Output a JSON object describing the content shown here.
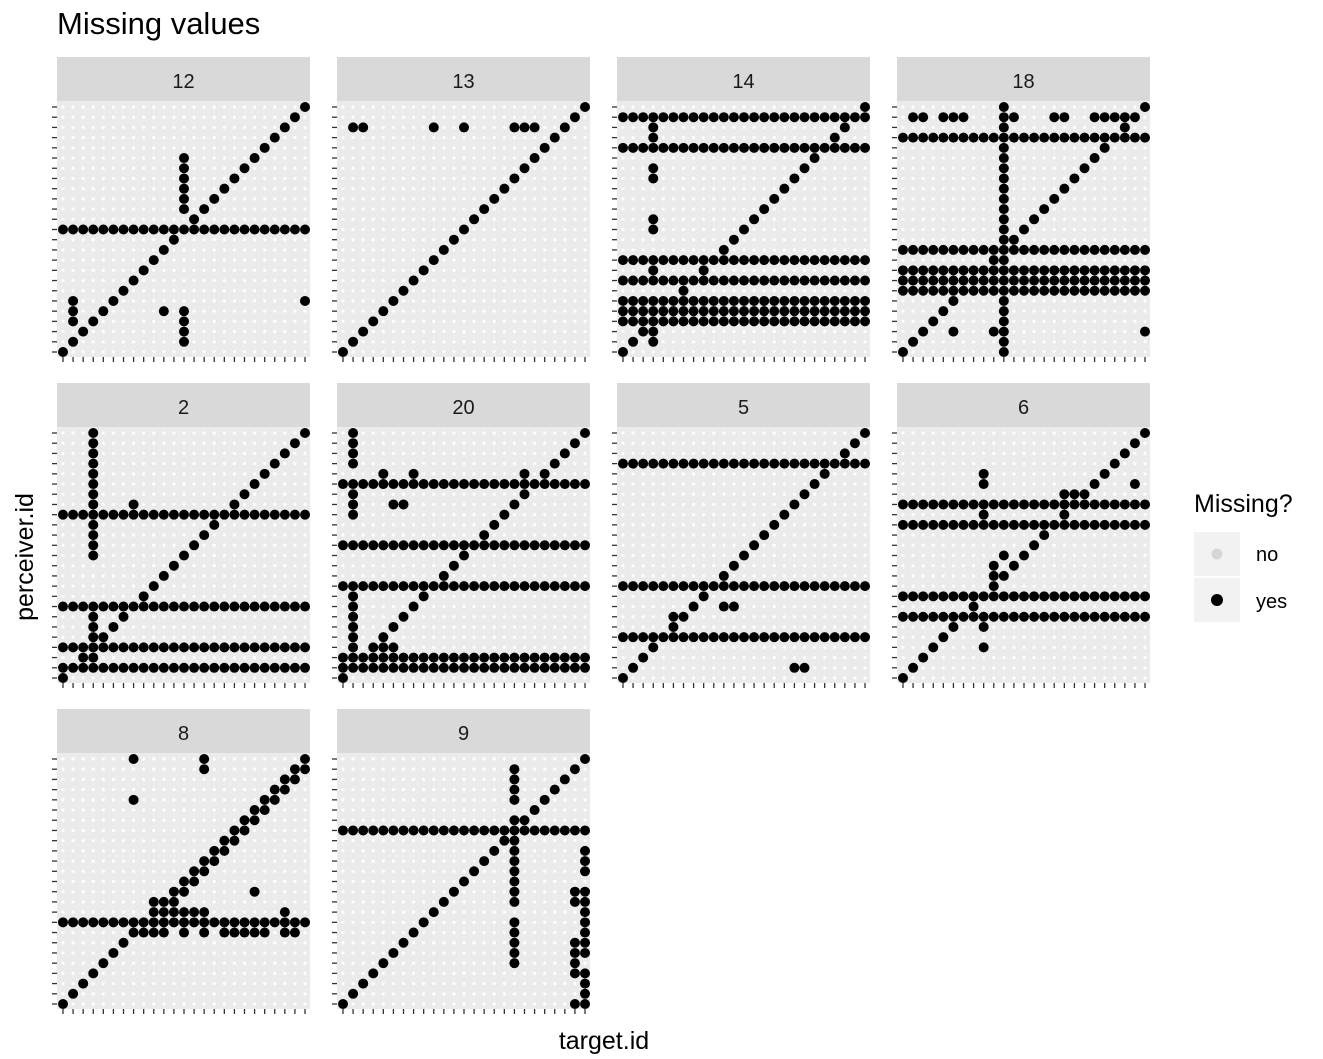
{
  "chart_data": {
    "type": "scatter",
    "title": "Missing values",
    "xlabel": "target.id",
    "ylabel": "perceiver.id",
    "grid": true,
    "legend": {
      "title": "Missing?",
      "placement": "right",
      "entries": [
        {
          "label": "no",
          "color": "#d6d6d6"
        },
        {
          "label": "yes",
          "color": "#000000"
        }
      ]
    },
    "colors": {
      "panel_bg": "#ebebeb",
      "strip_bg": "#d9d9d9",
      "grid": "#ffffff",
      "missing_point": "#000000",
      "present_point": "#d6d6d6"
    },
    "panels": [
      {
        "label": "12",
        "size": 25,
        "diagonal": true,
        "rows": [
          12
        ],
        "cols": [],
        "points": [
          [
            12,
            1
          ],
          [
            12,
            2
          ],
          [
            12,
            3
          ],
          [
            12,
            4
          ],
          [
            10,
            4
          ],
          [
            1,
            3
          ],
          [
            1,
            4
          ],
          [
            1,
            5
          ],
          [
            24,
            5
          ],
          [
            12,
            14
          ],
          [
            12,
            15
          ],
          [
            12,
            16
          ],
          [
            12,
            17
          ],
          [
            12,
            18
          ],
          [
            12,
            19
          ]
        ]
      },
      {
        "label": "13",
        "size": 25,
        "diagonal": true,
        "rows": [],
        "cols": [],
        "points": [
          [
            1,
            22
          ],
          [
            2,
            22
          ],
          [
            9,
            22
          ],
          [
            12,
            22
          ],
          [
            17,
            22
          ],
          [
            18,
            22
          ],
          [
            19,
            22
          ],
          [
            23,
            23
          ]
        ]
      },
      {
        "label": "14",
        "size": 25,
        "diagonal": true,
        "rows": [
          3,
          4,
          5,
          7,
          9,
          20,
          23
        ],
        "cols": [],
        "points": [
          [
            3,
            1
          ],
          [
            3,
            2
          ],
          [
            3,
            8
          ],
          [
            3,
            12
          ],
          [
            3,
            13
          ],
          [
            3,
            17
          ],
          [
            3,
            18
          ],
          [
            3,
            21
          ],
          [
            3,
            22
          ],
          [
            6,
            6
          ],
          [
            22,
            22
          ],
          [
            21,
            21
          ]
        ]
      },
      {
        "label": "18",
        "size": 25,
        "diagonal": true,
        "rows": [
          6,
          7,
          8,
          10,
          21
        ],
        "cols": [
          10
        ],
        "points": [
          [
            1,
            23
          ],
          [
            2,
            23
          ],
          [
            4,
            23
          ],
          [
            5,
            23
          ],
          [
            6,
            23
          ],
          [
            11,
            23
          ],
          [
            15,
            23
          ],
          [
            16,
            23
          ],
          [
            19,
            23
          ],
          [
            20,
            23
          ],
          [
            21,
            23
          ],
          [
            22,
            23
          ],
          [
            23,
            23
          ],
          [
            5,
            2
          ],
          [
            9,
            2
          ],
          [
            24,
            2
          ]
        ]
      },
      {
        "label": "2",
        "size": 25,
        "diagonal": true,
        "rows": [
          1,
          3,
          7,
          16
        ],
        "cols": [],
        "points": [
          [
            3,
            24
          ],
          [
            3,
            23
          ],
          [
            3,
            22
          ],
          [
            3,
            21
          ],
          [
            3,
            20
          ],
          [
            3,
            19
          ],
          [
            3,
            18
          ],
          [
            3,
            17
          ],
          [
            3,
            16
          ],
          [
            3,
            15
          ],
          [
            3,
            14
          ],
          [
            3,
            13
          ],
          [
            3,
            12
          ],
          [
            3,
            6
          ],
          [
            3,
            5
          ],
          [
            3,
            4
          ],
          [
            3,
            3
          ],
          [
            3,
            2
          ],
          [
            2,
            2
          ],
          [
            2,
            3
          ],
          [
            4,
            4
          ],
          [
            7,
            17
          ]
        ]
      },
      {
        "label": "20",
        "size": 25,
        "diagonal": true,
        "rows": [
          1,
          2,
          9,
          13,
          19
        ],
        "cols": [],
        "points": [
          [
            1,
            24
          ],
          [
            1,
            23
          ],
          [
            1,
            22
          ],
          [
            1,
            21
          ],
          [
            1,
            18
          ],
          [
            1,
            17
          ],
          [
            1,
            16
          ],
          [
            1,
            8
          ],
          [
            1,
            7
          ],
          [
            1,
            6
          ],
          [
            1,
            5
          ],
          [
            1,
            4
          ],
          [
            1,
            3
          ],
          [
            1,
            2
          ],
          [
            1,
            1
          ],
          [
            2,
            1
          ],
          [
            5,
            17
          ],
          [
            6,
            17
          ],
          [
            4,
            20
          ],
          [
            7,
            20
          ],
          [
            18,
            20
          ],
          [
            20,
            20
          ],
          [
            21,
            21
          ],
          [
            22,
            22
          ],
          [
            4,
            3
          ],
          [
            5,
            3
          ],
          [
            18,
            2
          ],
          [
            19,
            2
          ]
        ]
      },
      {
        "label": "5",
        "size": 25,
        "diagonal": true,
        "rows": [
          4,
          9,
          21
        ],
        "cols": [],
        "points": [
          [
            10,
            7
          ],
          [
            11,
            7
          ],
          [
            17,
            1
          ],
          [
            18,
            1
          ],
          [
            5,
            6
          ],
          [
            6,
            6
          ]
        ]
      },
      {
        "label": "6",
        "size": 25,
        "diagonal": true,
        "rows": [
          6,
          8,
          15,
          17
        ],
        "cols": [],
        "points": [
          [
            8,
            20
          ],
          [
            8,
            19
          ],
          [
            8,
            16
          ],
          [
            8,
            5
          ],
          [
            8,
            3
          ],
          [
            23,
            19
          ],
          [
            9,
            11
          ],
          [
            9,
            10
          ],
          [
            10,
            12
          ],
          [
            16,
            18
          ],
          [
            17,
            18
          ]
        ]
      },
      {
        "label": "8",
        "size": 25,
        "diagonal": true,
        "rows": [
          8
        ],
        "cols": [],
        "points": [
          [
            7,
            24
          ],
          [
            7,
            20
          ],
          [
            14,
            24
          ],
          [
            14,
            23
          ],
          [
            19,
            11
          ],
          [
            14,
            9
          ],
          [
            7,
            7
          ],
          [
            8,
            7
          ],
          [
            9,
            7
          ],
          [
            10,
            7
          ],
          [
            12,
            7
          ],
          [
            14,
            7
          ],
          [
            16,
            7
          ],
          [
            17,
            7
          ],
          [
            18,
            7
          ],
          [
            19,
            7
          ],
          [
            20,
            7
          ],
          [
            22,
            7
          ],
          [
            23,
            7
          ],
          [
            9,
            10
          ],
          [
            11,
            10
          ],
          [
            12,
            11
          ],
          [
            13,
            12
          ],
          [
            14,
            13
          ],
          [
            15,
            14
          ],
          [
            16,
            15
          ],
          [
            17,
            16
          ],
          [
            18,
            17
          ],
          [
            19,
            18
          ],
          [
            20,
            19
          ],
          [
            21,
            20
          ],
          [
            22,
            21
          ],
          [
            23,
            22
          ],
          [
            24,
            23
          ],
          [
            10,
            9
          ],
          [
            11,
            9
          ],
          [
            12,
            9
          ],
          [
            13,
            9
          ],
          [
            22,
            9
          ]
        ]
      },
      {
        "label": "9",
        "size": 25,
        "diagonal": true,
        "rows": [
          17
        ],
        "cols": [],
        "points": [
          [
            17,
            23
          ],
          [
            17,
            22
          ],
          [
            17,
            21
          ],
          [
            17,
            20
          ],
          [
            17,
            18
          ],
          [
            17,
            16
          ],
          [
            17,
            15
          ],
          [
            17,
            14
          ],
          [
            17,
            13
          ],
          [
            17,
            12
          ],
          [
            17,
            11
          ],
          [
            17,
            10
          ],
          [
            17,
            8
          ],
          [
            17,
            7
          ],
          [
            17,
            6
          ],
          [
            17,
            5
          ],
          [
            17,
            4
          ],
          [
            24,
            17
          ],
          [
            24,
            15
          ],
          [
            24,
            14
          ],
          [
            24,
            13
          ],
          [
            24,
            11
          ],
          [
            24,
            10
          ],
          [
            24,
            9
          ],
          [
            24,
            8
          ],
          [
            24,
            7
          ],
          [
            24,
            6
          ],
          [
            24,
            5
          ],
          [
            24,
            3
          ],
          [
            24,
            2
          ],
          [
            24,
            1
          ],
          [
            24,
            0
          ],
          [
            23,
            0
          ],
          [
            23,
            10
          ],
          [
            23,
            11
          ],
          [
            23,
            3
          ],
          [
            23,
            4
          ],
          [
            23,
            5
          ],
          [
            23,
            6
          ]
        ]
      }
    ]
  }
}
